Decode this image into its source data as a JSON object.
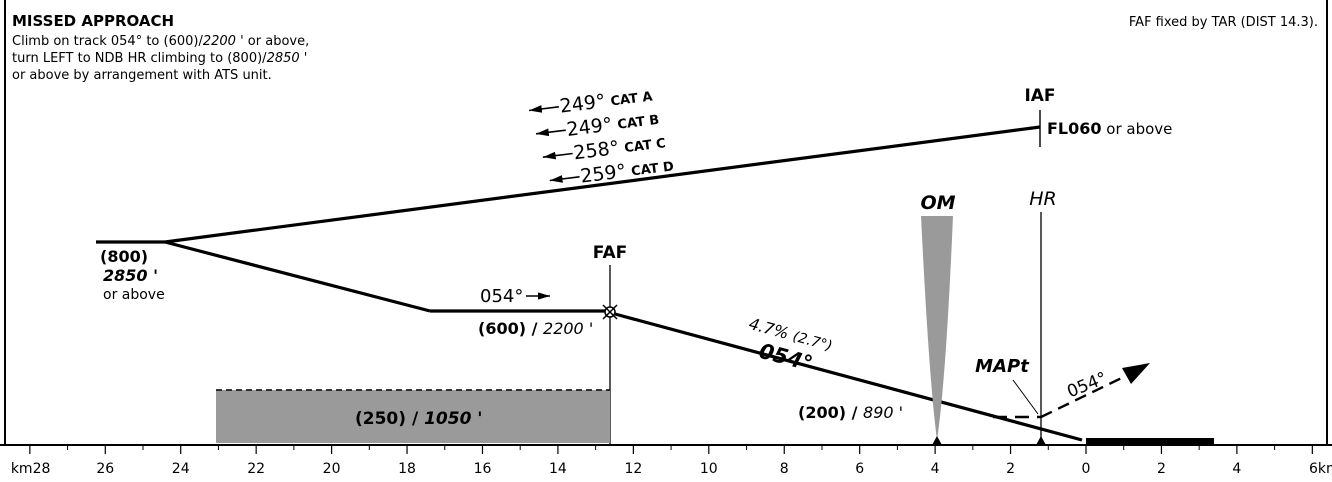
{
  "missed_approach": {
    "title": "MISSED APPROACH",
    "line1": "Climb on track 054° to (600)/",
    "line1_alt": "2200",
    "line1_end": " ' or above,",
    "line2": "turn LEFT to NDB HR climbing to (800)/",
    "line2_alt": "2850",
    "line2_end": " '",
    "line3": "or above by arrangement with ATS unit."
  },
  "faf_note": "FAF fixed by TAR (DIST 14.3).",
  "tracks": [
    {
      "course": "249°",
      "cat": "CAT A"
    },
    {
      "course": "249°",
      "cat": "CAT B"
    },
    {
      "course": "258°",
      "cat": "CAT C"
    },
    {
      "course": "259°",
      "cat": "CAT D"
    }
  ],
  "iaf": {
    "label": "IAF",
    "level": "FL060",
    "level_suffix": " or above"
  },
  "hr_label": "HR",
  "om_label": "OM",
  "faf_label": "FAF",
  "mapt_label": "MAPt",
  "missed_track": "054°",
  "left_alt": {
    "qfe": "(800)",
    "qnh": "2850 '",
    "suffix": "or above"
  },
  "seg_track": "054°",
  "faf_alt": {
    "qfe": "(600)",
    "sep": " / ",
    "qnh": "2200 '"
  },
  "glide": {
    "gradient": "4.7%",
    "angle": "(2.7°)",
    "track": "054°"
  },
  "om_alt": {
    "qfe": "(200)",
    "sep": " / ",
    "qnh": "890 '"
  },
  "msa_box": {
    "qfe": "(250)",
    "sep": " / ",
    "qnh": "1050 '"
  },
  "scale": {
    "ticks": [
      {
        "km": 28,
        "label": "km28"
      },
      {
        "km": 26,
        "label": "26"
      },
      {
        "km": 24,
        "label": "24"
      },
      {
        "km": 22,
        "label": "22"
      },
      {
        "km": 20,
        "label": "20"
      },
      {
        "km": 18,
        "label": "18"
      },
      {
        "km": 16,
        "label": "16"
      },
      {
        "km": 14,
        "label": "14"
      },
      {
        "km": 12,
        "label": "12"
      },
      {
        "km": 10,
        "label": "10"
      },
      {
        "km": 8,
        "label": "8"
      },
      {
        "km": 6,
        "label": "6"
      },
      {
        "km": 4,
        "label": "4"
      },
      {
        "km": 2,
        "label": "2"
      },
      {
        "km": 0,
        "label": "0"
      },
      {
        "km": -2,
        "label": "2"
      },
      {
        "km": -4,
        "label": "4"
      },
      {
        "km": -6,
        "label": "6km"
      }
    ]
  }
}
